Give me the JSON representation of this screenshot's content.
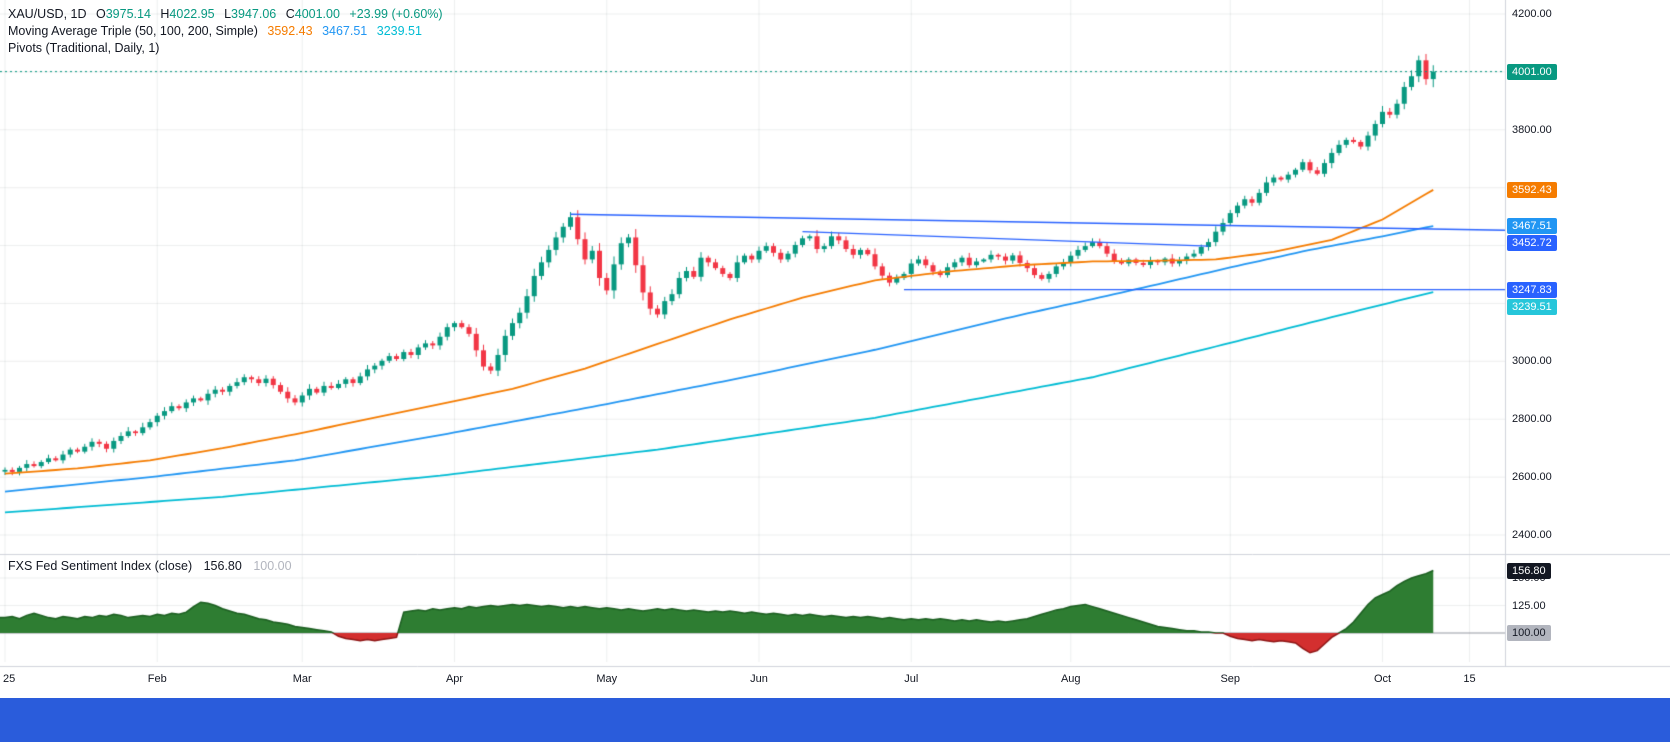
{
  "legend": {
    "symbol": "XAU/USD, 1D",
    "ohlc": [
      {
        "label": "O",
        "value": "3975.14"
      },
      {
        "label": "H",
        "value": "4022.95"
      },
      {
        "label": "L",
        "value": "3947.06"
      },
      {
        "label": "C",
        "value": "4001.00"
      }
    ],
    "change": "+23.99 (+0.60%)",
    "ma_title": "Moving Average Triple (50, 100, 200, Simple)",
    "ma_values": [
      "3592.43",
      "3467.51",
      "3239.51"
    ],
    "pivots_title": "Pivots (Traditional, Daily, 1)"
  },
  "sentiment_legend": {
    "title": "FXS Fed Sentiment Index (close)",
    "value": "156.80",
    "baseline": "100.00"
  },
  "price_axis": {
    "labels": [
      {
        "text": "4200.00",
        "price": 4200
      },
      {
        "text": "3800.00",
        "price": 3800
      },
      {
        "text": "3000.00",
        "price": 3000
      },
      {
        "text": "2800.00",
        "price": 2800
      },
      {
        "text": "2600.00",
        "price": 2600
      },
      {
        "text": "2400.00",
        "price": 2400
      }
    ],
    "badges": [
      {
        "text": "4001.00",
        "price": 4001.0,
        "bg": "#089981",
        "fg": "#FFFFFF"
      },
      {
        "text": "3592.43",
        "price": 3592.43,
        "bg": "#F57C00",
        "fg": "#FFFFFF"
      },
      {
        "text": "3467.51",
        "price": 3467.51,
        "bg": "#2196F3",
        "fg": "#FFFFFF"
      },
      {
        "text": "3452.72",
        "price": 3452.72,
        "bg": "#2962FF",
        "fg": "#FFFFFF"
      },
      {
        "text": "3247.83",
        "price": 3247.83,
        "bg": "#2962FF",
        "fg": "#FFFFFF"
      },
      {
        "text": "3239.51",
        "price": 3239.51,
        "bg": "#26C6DA",
        "fg": "#FFFFFF"
      }
    ]
  },
  "sentiment_axis": {
    "labels": [
      {
        "text": "150.00",
        "value": 150
      },
      {
        "text": "125.00",
        "value": 125
      }
    ],
    "badges": [
      {
        "text": "156.80",
        "value": 156.8,
        "bg": "#131722",
        "fg": "#FFFFFF"
      },
      {
        "text": "100.00",
        "value": 100,
        "bg": "#B2B5BE",
        "fg": "#131722"
      }
    ]
  },
  "time_axis": [
    [
      "25",
      0
    ],
    [
      "Feb",
      21
    ],
    [
      "Mar",
      41
    ],
    [
      "Apr",
      62
    ],
    [
      "May",
      83
    ],
    [
      "Jun",
      104
    ],
    [
      "Jul",
      125
    ],
    [
      "Aug",
      147
    ],
    [
      "Sep",
      169
    ],
    [
      "Oct",
      190
    ],
    [
      "15",
      202
    ]
  ],
  "chart_data": [
    {
      "type": "candlestick",
      "title": "XAU/USD, 1D",
      "up_color": "#089981",
      "down_color": "#F23645",
      "current_price": 4001.0,
      "y_axis_range": [
        2334,
        4248
      ],
      "y_gridline_step": 200,
      "last_bar": {
        "open": 3975.14,
        "high": 4022.95,
        "low": 3947.06,
        "close": 4001.0,
        "change": "+23.99 (+0.60%)"
      },
      "closes": [
        2625,
        2618,
        2632,
        2645,
        2638,
        2652,
        2665,
        2658,
        2678,
        2695,
        2688,
        2705,
        2722,
        2715,
        2698,
        2725,
        2742,
        2758,
        2752,
        2772,
        2790,
        2812,
        2828,
        2845,
        2838,
        2858,
        2872,
        2865,
        2888,
        2902,
        2895,
        2915,
        2928,
        2945,
        2938,
        2925,
        2940,
        2918,
        2895,
        2872,
        2858,
        2882,
        2905,
        2892,
        2915,
        2908,
        2922,
        2938,
        2925,
        2948,
        2972,
        2985,
        3002,
        3018,
        3008,
        3032,
        3022,
        3048,
        3062,
        3055,
        3085,
        3118,
        3132,
        3118,
        3095,
        3038,
        2982,
        2968,
        3022,
        3088,
        3132,
        3168,
        3225,
        3295,
        3342,
        3385,
        3428,
        3465,
        3498,
        3422,
        3352,
        3382,
        3288,
        3245,
        3335,
        3408,
        3428,
        3332,
        3238,
        3182,
        3162,
        3208,
        3232,
        3288,
        3312,
        3292,
        3358,
        3342,
        3322,
        3302,
        3288,
        3342,
        3365,
        3352,
        3382,
        3398,
        3375,
        3352,
        3372,
        3402,
        3425,
        3432,
        3388,
        3398,
        3432,
        3418,
        3388,
        3368,
        3385,
        3370,
        3328,
        3296,
        3272,
        3288,
        3302,
        3338,
        3352,
        3332,
        3310,
        3298,
        3325,
        3342,
        3358,
        3332,
        3345,
        3352,
        3368,
        3362,
        3348,
        3366,
        3340,
        3322,
        3298,
        3285,
        3302,
        3328,
        3340,
        3365,
        3385,
        3398,
        3412,
        3398,
        3372,
        3345,
        3338,
        3352,
        3340,
        3333,
        3348,
        3342,
        3355,
        3338,
        3348,
        3362,
        3372,
        3395,
        3412,
        3448,
        3478,
        3512,
        3538,
        3560,
        3548,
        3582,
        3618,
        3635,
        3628,
        3645,
        3662,
        3688,
        3660,
        3648,
        3685,
        3720,
        3748,
        3765,
        3758,
        3742,
        3780,
        3820,
        3862,
        3852,
        3890,
        3948,
        3985,
        4040,
        3975,
        4001
      ],
      "moving_averages": [
        {
          "name": "SMA 50",
          "color": "#F57C00",
          "last": 3592.43,
          "points": [
            [
              0,
              2612
            ],
            [
              10,
              2630
            ],
            [
              20,
              2658
            ],
            [
              30,
              2700
            ],
            [
              40,
              2748
            ],
            [
              50,
              2800
            ],
            [
              60,
              2852
            ],
            [
              70,
              2905
            ],
            [
              80,
              2975
            ],
            [
              90,
              3060
            ],
            [
              100,
              3145
            ],
            [
              110,
              3220
            ],
            [
              120,
              3280
            ],
            [
              130,
              3310
            ],
            [
              140,
              3332
            ],
            [
              150,
              3345
            ],
            [
              160,
              3348
            ],
            [
              167,
              3352
            ],
            [
              175,
              3378
            ],
            [
              183,
              3420
            ],
            [
              190,
              3490
            ],
            [
              197,
              3592.43
            ]
          ]
        },
        {
          "name": "SMA 100",
          "color": "#2196F3",
          "last": 3467.51,
          "points": [
            [
              0,
              2550
            ],
            [
              20,
              2600
            ],
            [
              40,
              2658
            ],
            [
              60,
              2745
            ],
            [
              80,
              2838
            ],
            [
              100,
              2935
            ],
            [
              120,
              3040
            ],
            [
              140,
              3160
            ],
            [
              150,
              3215
            ],
            [
              160,
              3272
            ],
            [
              170,
              3330
            ],
            [
              180,
              3385
            ],
            [
              190,
              3432
            ],
            [
              197,
              3467.51
            ]
          ]
        },
        {
          "name": "SMA 200",
          "color": "#00BCD4",
          "last": 3239.51,
          "points": [
            [
              0,
              2478
            ],
            [
              30,
              2532
            ],
            [
              60,
              2605
            ],
            [
              90,
              2695
            ],
            [
              120,
              2805
            ],
            [
              150,
              2945
            ],
            [
              170,
              3070
            ],
            [
              185,
              3165
            ],
            [
              197,
              3239.51
            ]
          ]
        }
      ],
      "pivot_lines": [
        {
          "type": "trendline",
          "color": "#2962FF",
          "from": [
            78,
            3508
          ],
          "to": [
            207,
            3452.72
          ]
        },
        {
          "type": "trendline",
          "color": "#2962FF",
          "from": [
            110,
            3448
          ],
          "to": [
            166,
            3398
          ]
        },
        {
          "type": "horizontal",
          "color": "#2962FF",
          "from_bar": 124,
          "to_bar": 207,
          "price": 3247.83
        }
      ]
    },
    {
      "type": "area",
      "title": "FXS Fed Sentiment Index (close)",
      "baseline": 100,
      "last": 156.8,
      "ylim": [
        78,
        162
      ],
      "pos_color": "#2E7D32",
      "pos_stroke": "#1B5E20",
      "neg_color": "#D32F2F",
      "neg_stroke": "#8E1515",
      "values": [
        114,
        115,
        113,
        116,
        118,
        116,
        114,
        113,
        115,
        114,
        113,
        115,
        114,
        116,
        115,
        117,
        116,
        114,
        115,
        116,
        115,
        117,
        116,
        118,
        117,
        119,
        124,
        128,
        127,
        125,
        122,
        120,
        118,
        117,
        115,
        113,
        112,
        110,
        109,
        108,
        106,
        105,
        104,
        103,
        102,
        101,
        97,
        95,
        94,
        93,
        94,
        93,
        94,
        95,
        96,
        119,
        120,
        121,
        120,
        122,
        121,
        122,
        123,
        122,
        124,
        123,
        124,
        125,
        124,
        125,
        126,
        125,
        126,
        125,
        124,
        125,
        124,
        123,
        124,
        123,
        124,
        123,
        122,
        123,
        122,
        121,
        122,
        121,
        120,
        121,
        122,
        121,
        122,
        121,
        120,
        121,
        120,
        119,
        120,
        119,
        120,
        119,
        118,
        119,
        118,
        117,
        118,
        117,
        116,
        117,
        116,
        117,
        116,
        115,
        116,
        115,
        114,
        115,
        114,
        115,
        114,
        113,
        114,
        113,
        112,
        113,
        112,
        113,
        112,
        113,
        112,
        111,
        112,
        111,
        112,
        111,
        110,
        111,
        110,
        111,
        112,
        113,
        115,
        117,
        119,
        121,
        122,
        124,
        125,
        126,
        124,
        122,
        120,
        118,
        116,
        114,
        112,
        110,
        108,
        106,
        105,
        104,
        103,
        102,
        102,
        101,
        101,
        100,
        100,
        97,
        95,
        94,
        93,
        94,
        93,
        92,
        93,
        92,
        91,
        86,
        82,
        84,
        90,
        96,
        100,
        104,
        110,
        118,
        126,
        132,
        135,
        138,
        143,
        147,
        150,
        152,
        154,
        156.8
      ]
    }
  ]
}
